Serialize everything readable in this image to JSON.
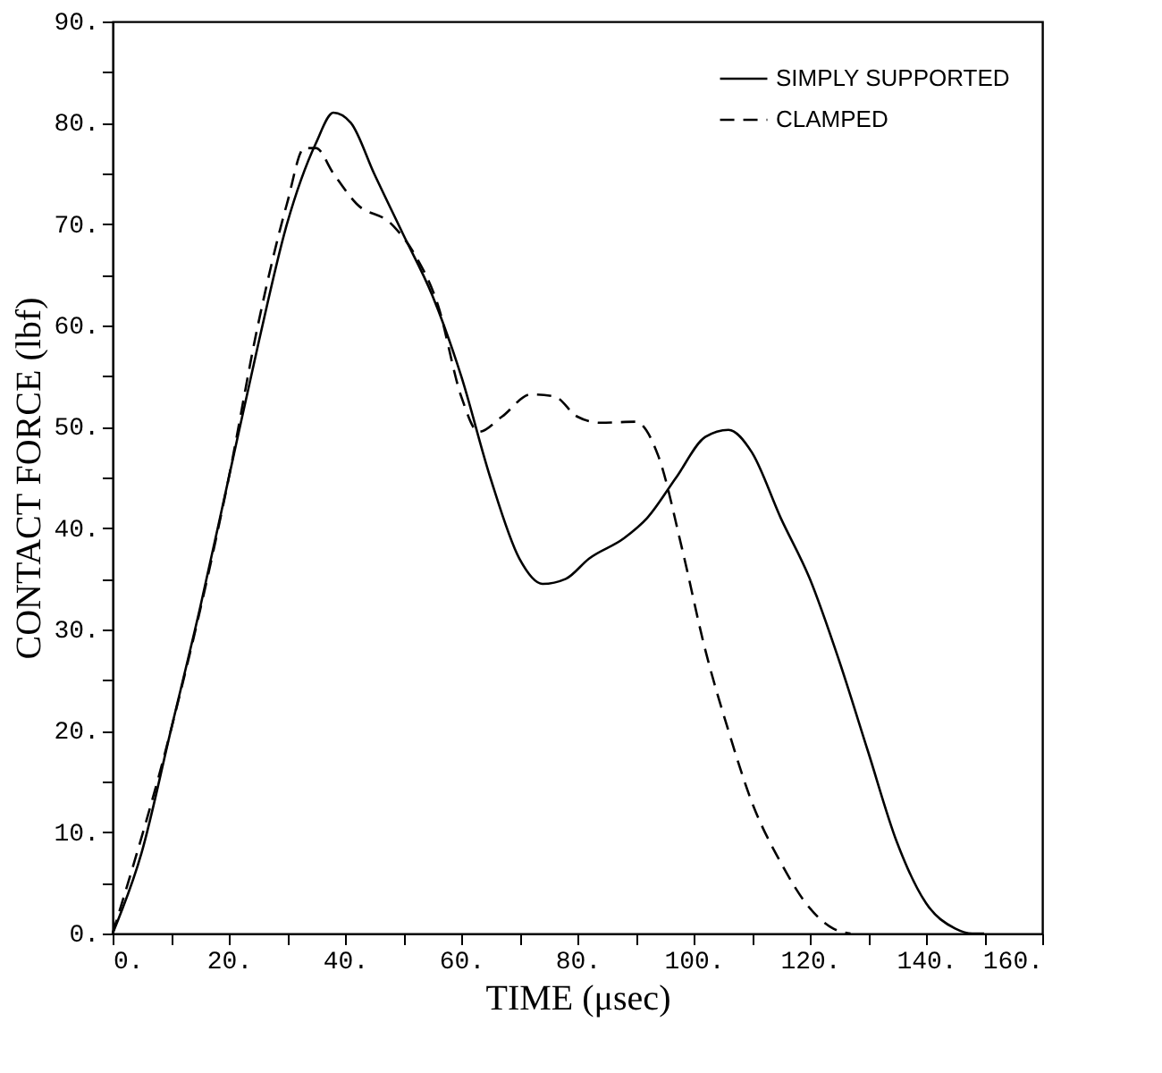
{
  "chart_data": {
    "type": "line",
    "xlabel": "TIME (μsec)",
    "ylabel": "CONTACT FORCE (lbf)",
    "xlim": [
      0,
      160
    ],
    "ylim": [
      0,
      90
    ],
    "xticks": [
      {
        "value": 0,
        "label": "0."
      },
      {
        "value": 10,
        "label": null
      },
      {
        "value": 20,
        "label": "20."
      },
      {
        "value": 30,
        "label": null
      },
      {
        "value": 40,
        "label": "40."
      },
      {
        "value": 50,
        "label": null
      },
      {
        "value": 60,
        "label": "60."
      },
      {
        "value": 70,
        "label": null
      },
      {
        "value": 80,
        "label": "80."
      },
      {
        "value": 90,
        "label": null
      },
      {
        "value": 100,
        "label": "100."
      },
      {
        "value": 110,
        "label": null
      },
      {
        "value": 120,
        "label": "120."
      },
      {
        "value": 130,
        "label": null
      },
      {
        "value": 140,
        "label": "140."
      },
      {
        "value": 150,
        "label": null
      },
      {
        "value": 160,
        "label": "160."
      }
    ],
    "yticks": [
      {
        "value": 0,
        "label": "0."
      },
      {
        "value": 5,
        "label": null
      },
      {
        "value": 10,
        "label": "10."
      },
      {
        "value": 15,
        "label": null
      },
      {
        "value": 20,
        "label": "20."
      },
      {
        "value": 25,
        "label": null
      },
      {
        "value": 30,
        "label": "30."
      },
      {
        "value": 35,
        "label": null
      },
      {
        "value": 40,
        "label": "40."
      },
      {
        "value": 45,
        "label": null
      },
      {
        "value": 50,
        "label": "50."
      },
      {
        "value": 55,
        "label": null
      },
      {
        "value": 60,
        "label": "60."
      },
      {
        "value": 65,
        "label": null
      },
      {
        "value": 70,
        "label": "70."
      },
      {
        "value": 75,
        "label": null
      },
      {
        "value": 80,
        "label": "80."
      },
      {
        "value": 85,
        "label": null
      },
      {
        "value": 90,
        "label": "90."
      }
    ],
    "grid": false,
    "legend": "top right",
    "marker": "none",
    "series": [
      {
        "name": "SIMPLY SUPPORTED",
        "color": "#000000",
        "line_style": "solid",
        "x": [
          0,
          5,
          10,
          15,
          20,
          25,
          30,
          35,
          38,
          41,
          45,
          50,
          55,
          60,
          65,
          70,
          74,
          78,
          82,
          88,
          92,
          97,
          102,
          106,
          110,
          115,
          120,
          125,
          130,
          135,
          140,
          145,
          148,
          150
        ],
        "values": [
          0,
          8,
          20,
          32,
          45,
          58,
          70,
          78,
          81,
          80,
          75,
          69,
          63,
          55,
          45,
          37,
          34.5,
          35,
          37,
          39,
          41,
          45,
          49,
          49.7,
          47.5,
          41,
          35,
          27,
          18,
          9,
          3,
          0.5,
          0,
          0
        ]
      },
      {
        "name": "CLAMPED",
        "color": "#000000",
        "line_style": "dashed",
        "x": [
          0,
          10,
          20,
          25,
          30,
          33,
          35,
          38,
          42,
          48,
          52,
          56,
          60,
          63,
          67,
          72,
          76,
          80,
          84,
          90,
          94,
          98,
          102,
          106,
          110,
          115,
          120,
          124,
          127
        ],
        "values": [
          0,
          20,
          45,
          60,
          72,
          77.5,
          77.5,
          75,
          72,
          70,
          67,
          62,
          53,
          49.5,
          51,
          53.2,
          53,
          51,
          50.4,
          50.5,
          47,
          38,
          28,
          20,
          13,
          7,
          2.5,
          0.5,
          0
        ]
      }
    ]
  }
}
